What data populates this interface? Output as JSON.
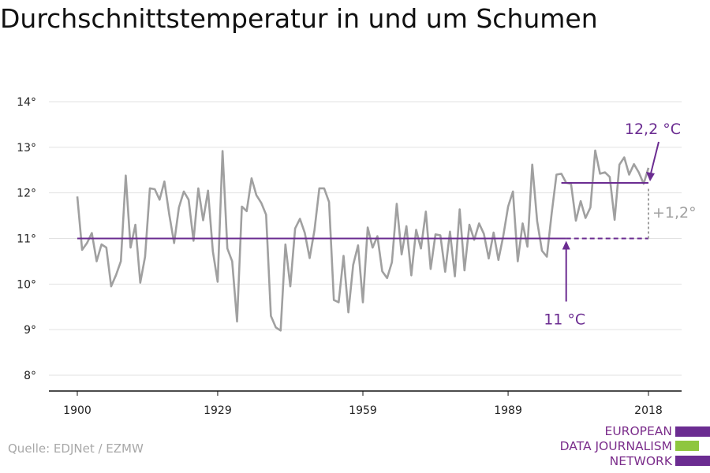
{
  "title": "Durchschnittstemperatur in und um Schumen",
  "source": "Quelle: EDJNet / EZMW",
  "logo": {
    "lines": [
      "EUROPEAN",
      "DATA JOURNALISM",
      "NETWORK"
    ]
  },
  "colors": {
    "series": "#a0a0a0",
    "accent": "#6b2c91",
    "grid": "#e2e2e2",
    "axis": "#111111",
    "logo_green": "#8ec63f"
  },
  "chart_data": {
    "type": "line",
    "title": "Durchschnittstemperatur in und um Schumen",
    "xlabel": "",
    "ylabel": "",
    "ylim": [
      8,
      14
    ],
    "xlim": [
      1900,
      2018
    ],
    "x_ticks": [
      1900,
      1929,
      1959,
      1989,
      2018
    ],
    "x_tick_labels": [
      "1900",
      "1929",
      "1959",
      "1989",
      "2018"
    ],
    "y_ticks": [
      8,
      9,
      10,
      11,
      12,
      13,
      14
    ],
    "y_tick_labels": [
      "8°",
      "9°",
      "10°",
      "11°",
      "12°",
      "13°",
      "14°"
    ],
    "grid": true,
    "series": [
      {
        "x_start": 1900,
        "values": [
          11.92,
          10.75,
          10.9,
          11.12,
          10.5,
          10.87,
          10.8,
          9.95,
          10.2,
          10.5,
          12.38,
          10.8,
          11.3,
          10.03,
          10.6,
          12.1,
          12.08,
          11.85,
          12.25,
          11.52,
          10.9,
          11.68,
          12.03,
          11.85,
          10.95,
          12.1,
          11.4,
          12.05,
          10.72,
          10.05,
          12.92,
          10.78,
          10.5,
          9.18,
          11.7,
          11.6,
          12.32,
          11.95,
          11.78,
          11.52,
          9.3,
          9.05,
          8.98,
          10.87,
          9.95,
          11.22,
          11.43,
          11.12,
          10.57,
          11.18,
          12.1,
          12.1,
          11.8,
          9.65,
          9.6,
          10.62,
          9.38,
          10.42,
          10.85,
          9.6,
          11.24,
          10.8,
          11.05,
          10.28,
          10.13,
          10.48,
          11.76,
          10.65,
          11.27,
          10.19,
          11.19,
          10.78,
          11.59,
          10.33,
          11.09,
          11.07,
          10.27,
          11.15,
          10.17,
          11.64,
          10.3,
          11.3,
          10.97,
          11.33,
          11.1,
          10.56,
          11.13,
          10.53,
          11.05,
          11.7,
          12.03,
          10.5,
          11.33,
          10.82,
          12.62,
          11.38,
          10.73,
          10.6,
          11.55,
          12.4,
          12.42,
          12.22,
          12.2,
          11.39,
          11.82,
          11.45,
          11.68,
          12.93,
          12.42,
          12.45,
          12.35,
          11.41,
          12.62,
          12.78,
          12.4,
          12.63,
          12.45,
          12.2,
          12.55
        ]
      }
    ],
    "annotations": {
      "baseline_mean": {
        "value": 11.0,
        "from": 1900,
        "to": 2001,
        "dashed_to": 2018,
        "label": "11 °C",
        "arrow_at": 2001
      },
      "recent_mean": {
        "value": 12.22,
        "from": 2000,
        "to": 2018,
        "label": "12,2 °C"
      },
      "difference": {
        "label": "+1,2°",
        "at": 2018
      }
    }
  }
}
